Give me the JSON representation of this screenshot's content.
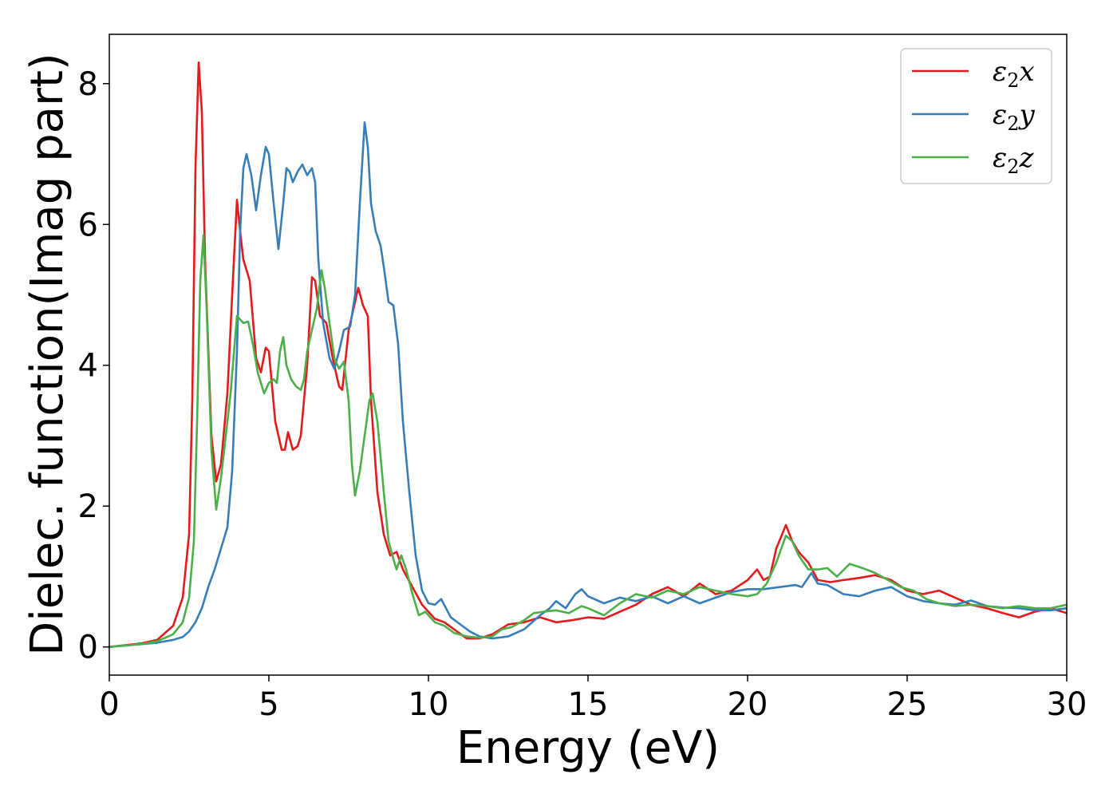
{
  "chart_data": {
    "type": "line",
    "title": "",
    "xlabel": "Energy (eV)",
    "ylabel": "Dielec. function(Imag part)",
    "xlim": [
      0,
      30
    ],
    "ylim": [
      -0.4,
      8.7
    ],
    "xticks": [
      0,
      5,
      10,
      15,
      20,
      25,
      30
    ],
    "xtick_labels": [
      "0",
      "5",
      "10",
      "15",
      "20",
      "25",
      "30"
    ],
    "yticks": [
      0,
      2,
      4,
      6,
      8
    ],
    "ytick_labels": [
      "0",
      "2",
      "4",
      "6",
      "8"
    ],
    "grid": false,
    "legend_position": "top-right",
    "series": [
      {
        "name": "ε2x",
        "legend_symbol": "ε",
        "legend_sub": "2",
        "legend_var": "x",
        "color": "#e41a1c",
        "points": [
          [
            0,
            0
          ],
          [
            1,
            0.05
          ],
          [
            1.5,
            0.1
          ],
          [
            2,
            0.3
          ],
          [
            2.3,
            0.7
          ],
          [
            2.5,
            1.6
          ],
          [
            2.6,
            3.5
          ],
          [
            2.7,
            6.8
          ],
          [
            2.8,
            8.3
          ],
          [
            2.9,
            7.6
          ],
          [
            3.0,
            5.5
          ],
          [
            3.2,
            3.0
          ],
          [
            3.35,
            2.35
          ],
          [
            3.5,
            2.6
          ],
          [
            3.7,
            3.6
          ],
          [
            3.85,
            5.0
          ],
          [
            4.0,
            6.35
          ],
          [
            4.1,
            5.9
          ],
          [
            4.2,
            5.5
          ],
          [
            4.4,
            5.2
          ],
          [
            4.6,
            4.1
          ],
          [
            4.75,
            3.9
          ],
          [
            4.9,
            4.25
          ],
          [
            5.0,
            4.2
          ],
          [
            5.2,
            3.2
          ],
          [
            5.4,
            2.8
          ],
          [
            5.5,
            2.8
          ],
          [
            5.6,
            3.05
          ],
          [
            5.75,
            2.8
          ],
          [
            5.9,
            2.85
          ],
          [
            6.0,
            3.0
          ],
          [
            6.2,
            4.0
          ],
          [
            6.35,
            5.25
          ],
          [
            6.45,
            5.2
          ],
          [
            6.6,
            4.7
          ],
          [
            6.8,
            4.6
          ],
          [
            7.0,
            4.1
          ],
          [
            7.2,
            3.7
          ],
          [
            7.3,
            3.65
          ],
          [
            7.5,
            4.5
          ],
          [
            7.8,
            5.1
          ],
          [
            7.95,
            4.85
          ],
          [
            8.1,
            4.7
          ],
          [
            8.2,
            3.5
          ],
          [
            8.4,
            2.2
          ],
          [
            8.6,
            1.6
          ],
          [
            8.8,
            1.3
          ],
          [
            9.0,
            1.35
          ],
          [
            9.2,
            1.1
          ],
          [
            9.5,
            0.85
          ],
          [
            9.8,
            0.6
          ],
          [
            10.0,
            0.5
          ],
          [
            10.2,
            0.4
          ],
          [
            10.5,
            0.35
          ],
          [
            10.8,
            0.25
          ],
          [
            11.2,
            0.12
          ],
          [
            11.6,
            0.12
          ],
          [
            12.0,
            0.18
          ],
          [
            12.5,
            0.32
          ],
          [
            13.0,
            0.35
          ],
          [
            13.5,
            0.42
          ],
          [
            14.0,
            0.35
          ],
          [
            14.5,
            0.38
          ],
          [
            15.0,
            0.42
          ],
          [
            15.5,
            0.4
          ],
          [
            16.0,
            0.5
          ],
          [
            16.5,
            0.6
          ],
          [
            17.0,
            0.75
          ],
          [
            17.5,
            0.85
          ],
          [
            18.0,
            0.72
          ],
          [
            18.5,
            0.9
          ],
          [
            19.0,
            0.75
          ],
          [
            19.5,
            0.8
          ],
          [
            20.0,
            0.95
          ],
          [
            20.3,
            1.1
          ],
          [
            20.5,
            0.95
          ],
          [
            20.7,
            1.0
          ],
          [
            20.9,
            1.4
          ],
          [
            21.2,
            1.73
          ],
          [
            21.4,
            1.5
          ],
          [
            21.6,
            1.35
          ],
          [
            21.9,
            1.2
          ],
          [
            22.2,
            0.95
          ],
          [
            22.6,
            0.92
          ],
          [
            23.0,
            0.95
          ],
          [
            23.5,
            0.98
          ],
          [
            24.0,
            1.02
          ],
          [
            24.5,
            0.95
          ],
          [
            25.0,
            0.8
          ],
          [
            25.5,
            0.75
          ],
          [
            26.0,
            0.8
          ],
          [
            26.5,
            0.7
          ],
          [
            27.0,
            0.6
          ],
          [
            27.5,
            0.55
          ],
          [
            28.0,
            0.48
          ],
          [
            28.5,
            0.42
          ],
          [
            29.0,
            0.5
          ],
          [
            29.5,
            0.55
          ],
          [
            30.0,
            0.48
          ]
        ]
      },
      {
        "name": "ε2y",
        "legend_symbol": "ε",
        "legend_sub": "2",
        "legend_var": "y",
        "color": "#377eb8",
        "points": [
          [
            0,
            0
          ],
          [
            1,
            0.04
          ],
          [
            1.5,
            0.06
          ],
          [
            2,
            0.1
          ],
          [
            2.3,
            0.14
          ],
          [
            2.5,
            0.22
          ],
          [
            2.7,
            0.35
          ],
          [
            2.9,
            0.55
          ],
          [
            3.1,
            0.85
          ],
          [
            3.3,
            1.1
          ],
          [
            3.5,
            1.4
          ],
          [
            3.7,
            1.7
          ],
          [
            3.85,
            2.5
          ],
          [
            4.0,
            4.2
          ],
          [
            4.1,
            5.9
          ],
          [
            4.2,
            6.8
          ],
          [
            4.3,
            7.0
          ],
          [
            4.45,
            6.7
          ],
          [
            4.6,
            6.2
          ],
          [
            4.75,
            6.7
          ],
          [
            4.9,
            7.1
          ],
          [
            5.0,
            7.0
          ],
          [
            5.15,
            6.3
          ],
          [
            5.3,
            5.65
          ],
          [
            5.45,
            6.3
          ],
          [
            5.55,
            6.8
          ],
          [
            5.65,
            6.75
          ],
          [
            5.75,
            6.6
          ],
          [
            5.9,
            6.75
          ],
          [
            6.05,
            6.85
          ],
          [
            6.2,
            6.7
          ],
          [
            6.35,
            6.8
          ],
          [
            6.45,
            6.6
          ],
          [
            6.55,
            5.5
          ],
          [
            6.7,
            4.6
          ],
          [
            6.9,
            4.1
          ],
          [
            7.05,
            3.95
          ],
          [
            7.2,
            4.2
          ],
          [
            7.35,
            4.5
          ],
          [
            7.55,
            4.55
          ],
          [
            7.7,
            5.0
          ],
          [
            7.85,
            6.3
          ],
          [
            8.0,
            7.45
          ],
          [
            8.1,
            7.1
          ],
          [
            8.2,
            6.3
          ],
          [
            8.35,
            5.9
          ],
          [
            8.5,
            5.7
          ],
          [
            8.6,
            5.4
          ],
          [
            8.75,
            4.9
          ],
          [
            8.9,
            4.85
          ],
          [
            9.05,
            4.3
          ],
          [
            9.2,
            3.2
          ],
          [
            9.4,
            2.2
          ],
          [
            9.6,
            1.3
          ],
          [
            9.8,
            0.8
          ],
          [
            10.0,
            0.62
          ],
          [
            10.2,
            0.6
          ],
          [
            10.4,
            0.68
          ],
          [
            10.55,
            0.55
          ],
          [
            10.7,
            0.42
          ],
          [
            11.0,
            0.32
          ],
          [
            11.3,
            0.22
          ],
          [
            11.6,
            0.15
          ],
          [
            12.0,
            0.12
          ],
          [
            12.5,
            0.15
          ],
          [
            13.0,
            0.25
          ],
          [
            13.5,
            0.45
          ],
          [
            13.8,
            0.55
          ],
          [
            14.0,
            0.65
          ],
          [
            14.3,
            0.55
          ],
          [
            14.6,
            0.75
          ],
          [
            14.8,
            0.82
          ],
          [
            15.0,
            0.72
          ],
          [
            15.5,
            0.62
          ],
          [
            16.0,
            0.7
          ],
          [
            16.5,
            0.65
          ],
          [
            17.0,
            0.72
          ],
          [
            17.5,
            0.62
          ],
          [
            18.0,
            0.72
          ],
          [
            18.5,
            0.62
          ],
          [
            19.0,
            0.7
          ],
          [
            19.5,
            0.78
          ],
          [
            20.0,
            0.82
          ],
          [
            20.5,
            0.82
          ],
          [
            21.0,
            0.85
          ],
          [
            21.5,
            0.88
          ],
          [
            21.7,
            0.85
          ],
          [
            22.0,
            1.05
          ],
          [
            22.2,
            0.9
          ],
          [
            22.5,
            0.88
          ],
          [
            23.0,
            0.75
          ],
          [
            23.5,
            0.72
          ],
          [
            24.0,
            0.8
          ],
          [
            24.5,
            0.85
          ],
          [
            25.0,
            0.72
          ],
          [
            25.5,
            0.65
          ],
          [
            26.0,
            0.62
          ],
          [
            26.5,
            0.6
          ],
          [
            27.0,
            0.66
          ],
          [
            27.5,
            0.58
          ],
          [
            28.0,
            0.56
          ],
          [
            28.5,
            0.55
          ],
          [
            29.0,
            0.52
          ],
          [
            29.5,
            0.52
          ],
          [
            30.0,
            0.55
          ]
        ]
      },
      {
        "name": "ε2z",
        "legend_symbol": "ε",
        "legend_sub": "2",
        "legend_var": "z",
        "color": "#4daf4a",
        "points": [
          [
            0,
            0
          ],
          [
            1,
            0.04
          ],
          [
            1.5,
            0.08
          ],
          [
            2,
            0.18
          ],
          [
            2.3,
            0.35
          ],
          [
            2.5,
            0.7
          ],
          [
            2.65,
            1.5
          ],
          [
            2.75,
            3.2
          ],
          [
            2.85,
            5.2
          ],
          [
            2.95,
            5.85
          ],
          [
            3.05,
            4.8
          ],
          [
            3.2,
            2.8
          ],
          [
            3.35,
            1.95
          ],
          [
            3.5,
            2.4
          ],
          [
            3.65,
            3.0
          ],
          [
            3.8,
            3.6
          ],
          [
            4.0,
            4.7
          ],
          [
            4.2,
            4.6
          ],
          [
            4.35,
            4.62
          ],
          [
            4.5,
            4.3
          ],
          [
            4.65,
            3.9
          ],
          [
            4.85,
            3.6
          ],
          [
            5.0,
            3.75
          ],
          [
            5.15,
            3.8
          ],
          [
            5.25,
            3.75
          ],
          [
            5.35,
            4.2
          ],
          [
            5.45,
            4.4
          ],
          [
            5.55,
            4.0
          ],
          [
            5.7,
            3.8
          ],
          [
            5.85,
            3.7
          ],
          [
            6.0,
            3.65
          ],
          [
            6.1,
            3.8
          ],
          [
            6.2,
            4.2
          ],
          [
            6.35,
            4.5
          ],
          [
            6.5,
            4.8
          ],
          [
            6.65,
            5.35
          ],
          [
            6.75,
            5.1
          ],
          [
            6.9,
            4.6
          ],
          [
            7.05,
            4.1
          ],
          [
            7.2,
            3.95
          ],
          [
            7.35,
            4.05
          ],
          [
            7.5,
            3.5
          ],
          [
            7.6,
            2.6
          ],
          [
            7.7,
            2.15
          ],
          [
            7.85,
            2.5
          ],
          [
            8.0,
            3.0
          ],
          [
            8.15,
            3.5
          ],
          [
            8.25,
            3.6
          ],
          [
            8.4,
            3.2
          ],
          [
            8.6,
            2.2
          ],
          [
            8.75,
            1.5
          ],
          [
            8.9,
            1.25
          ],
          [
            9.0,
            1.1
          ],
          [
            9.15,
            1.3
          ],
          [
            9.3,
            1.1
          ],
          [
            9.5,
            0.75
          ],
          [
            9.7,
            0.45
          ],
          [
            9.9,
            0.5
          ],
          [
            10.2,
            0.35
          ],
          [
            10.5,
            0.3
          ],
          [
            10.8,
            0.2
          ],
          [
            11.2,
            0.15
          ],
          [
            11.6,
            0.13
          ],
          [
            12.0,
            0.15
          ],
          [
            12.3,
            0.25
          ],
          [
            12.6,
            0.28
          ],
          [
            13.0,
            0.38
          ],
          [
            13.3,
            0.48
          ],
          [
            13.6,
            0.5
          ],
          [
            14.0,
            0.52
          ],
          [
            14.4,
            0.48
          ],
          [
            14.8,
            0.58
          ],
          [
            15.0,
            0.55
          ],
          [
            15.5,
            0.45
          ],
          [
            16.0,
            0.62
          ],
          [
            16.5,
            0.75
          ],
          [
            17.0,
            0.7
          ],
          [
            17.5,
            0.8
          ],
          [
            18.0,
            0.75
          ],
          [
            18.5,
            0.85
          ],
          [
            19.0,
            0.8
          ],
          [
            19.5,
            0.75
          ],
          [
            20.0,
            0.72
          ],
          [
            20.3,
            0.75
          ],
          [
            20.6,
            0.9
          ],
          [
            20.9,
            1.2
          ],
          [
            21.2,
            1.58
          ],
          [
            21.4,
            1.5
          ],
          [
            21.6,
            1.3
          ],
          [
            21.9,
            1.1
          ],
          [
            22.2,
            1.1
          ],
          [
            22.5,
            1.12
          ],
          [
            22.8,
            1.0
          ],
          [
            23.2,
            1.18
          ],
          [
            23.6,
            1.12
          ],
          [
            24.0,
            1.05
          ],
          [
            24.4,
            0.95
          ],
          [
            24.8,
            0.85
          ],
          [
            25.2,
            0.8
          ],
          [
            25.6,
            0.68
          ],
          [
            26.0,
            0.62
          ],
          [
            26.5,
            0.58
          ],
          [
            27.0,
            0.6
          ],
          [
            27.5,
            0.58
          ],
          [
            28.0,
            0.55
          ],
          [
            28.5,
            0.58
          ],
          [
            29.0,
            0.55
          ],
          [
            29.5,
            0.55
          ],
          [
            30.0,
            0.6
          ]
        ]
      }
    ]
  }
}
